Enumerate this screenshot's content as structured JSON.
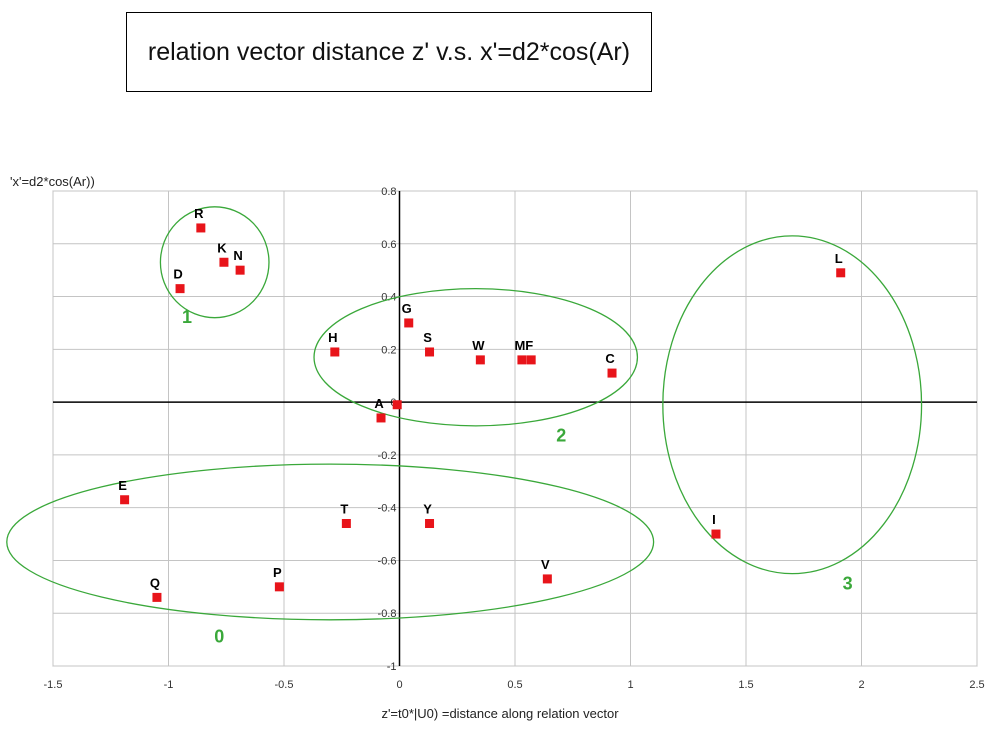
{
  "chart_data": {
    "type": "scatter",
    "title": "relation vector distance z' v.s. x'=d2*cos(Ar)",
    "xlabel": "z'=t0*|U0) =distance along relation vector",
    "ylabel": "'x'=d2*cos(Ar))",
    "xlim": [
      -1.5,
      2.5
    ],
    "ylim": [
      -1,
      0.8
    ],
    "xticks": [
      "-1.5",
      "-1",
      "-0.5",
      "0",
      "0.5",
      "1",
      "1.5",
      "2",
      "2.5"
    ],
    "yticks": [
      "0.8",
      "0.6",
      "0.4",
      "0.2",
      "0",
      "-0.2",
      "-0.4",
      "-0.6",
      "-0.8",
      "-1"
    ],
    "grid": true,
    "marker_color": "#e8141a",
    "cluster_color": "#3aa83a",
    "points": [
      {
        "label": "R",
        "x": -0.86,
        "y": 0.66
      },
      {
        "label": "K",
        "x": -0.76,
        "y": 0.53
      },
      {
        "label": "N",
        "x": -0.69,
        "y": 0.5
      },
      {
        "label": "D",
        "x": -0.95,
        "y": 0.43
      },
      {
        "label": "G",
        "x": 0.04,
        "y": 0.3
      },
      {
        "label": "H",
        "x": -0.28,
        "y": 0.19
      },
      {
        "label": "S",
        "x": 0.13,
        "y": 0.19
      },
      {
        "label": "W",
        "x": 0.35,
        "y": 0.16
      },
      {
        "label": "M",
        "x": 0.53,
        "y": 0.16
      },
      {
        "label": "F",
        "x": 0.57,
        "y": 0.16
      },
      {
        "label": "C",
        "x": 0.92,
        "y": 0.11
      },
      {
        "label": "A",
        "x": -0.08,
        "y": -0.06
      },
      {
        "label": "",
        "x": -0.01,
        "y": -0.01
      },
      {
        "label": "L",
        "x": 1.91,
        "y": 0.49
      },
      {
        "label": "E",
        "x": -1.19,
        "y": -0.37
      },
      {
        "label": "T",
        "x": -0.23,
        "y": -0.46
      },
      {
        "label": "Y",
        "x": 0.13,
        "y": -0.46
      },
      {
        "label": "I",
        "x": 1.37,
        "y": -0.5
      },
      {
        "label": "P",
        "x": -0.52,
        "y": -0.7
      },
      {
        "label": "Q",
        "x": -1.05,
        "y": -0.74
      },
      {
        "label": "V",
        "x": 0.64,
        "y": -0.67
      }
    ],
    "clusters": [
      {
        "label": "1",
        "cx": -0.8,
        "cy": 0.53,
        "rx": 0.235,
        "ry": 0.21,
        "label_x": -0.92,
        "label_y": 0.3
      },
      {
        "label": "2",
        "cx": 0.33,
        "cy": 0.17,
        "rx": 0.7,
        "ry": 0.26,
        "label_x": 0.7,
        "label_y": -0.15
      },
      {
        "label": "0",
        "cx": -0.3,
        "cy": -0.53,
        "rx": 1.4,
        "ry": 0.295,
        "label_x": -0.78,
        "label_y": -0.91
      },
      {
        "label": "3",
        "cx": 1.7,
        "cy": -0.01,
        "rx": 0.56,
        "ry": 0.64,
        "label_x": 1.94,
        "label_y": -0.71
      }
    ]
  }
}
